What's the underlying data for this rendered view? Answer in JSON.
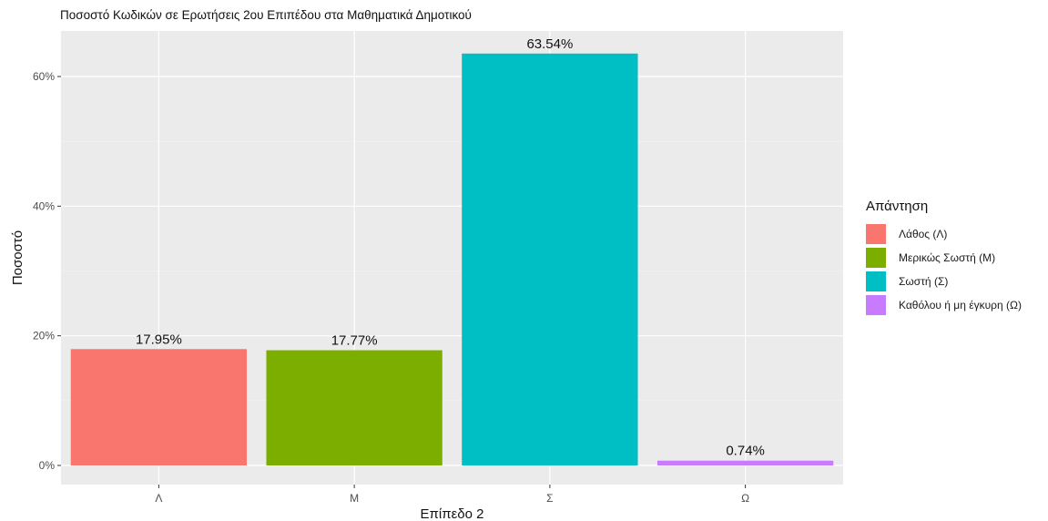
{
  "chart_data": {
    "type": "bar",
    "title": "Ποσοστό Κωδικών σε Ερωτήσεις 2ου Επιπέδου στα Μαθηματικά Δημοτικού",
    "xlabel": "Επίπεδο 2",
    "ylabel": "Ποσοστό",
    "categories": [
      "Λ",
      "Μ",
      "Σ",
      "Ω"
    ],
    "values": [
      17.95,
      17.77,
      63.54,
      0.74
    ],
    "value_labels": [
      "17.95%",
      "17.77%",
      "63.54%",
      "0.74%"
    ],
    "colors": [
      "#F8766D",
      "#7CAE00",
      "#00BFC4",
      "#C77CFF"
    ],
    "ylim": [
      0,
      66.7
    ],
    "yticks": [
      0,
      20,
      40,
      60
    ],
    "ytick_labels": [
      "0%",
      "20%",
      "40%",
      "60%"
    ],
    "grid": true,
    "legend_position": "right",
    "legend": {
      "title": "Απάντηση",
      "items": [
        {
          "label": "Λάθος (Λ)",
          "color": "#F8766D"
        },
        {
          "label": "Μερικώς Σωστή (Μ)",
          "color": "#7CAE00"
        },
        {
          "label": "Σωστή (Σ)",
          "color": "#00BFC4"
        },
        {
          "label": "Καθόλου ή μη έγκυρη (Ω)",
          "color": "#C77CFF"
        }
      ]
    }
  }
}
